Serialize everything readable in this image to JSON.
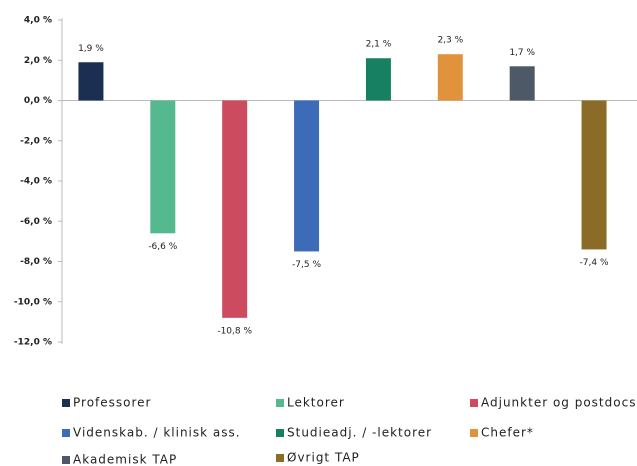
{
  "chart_data": {
    "type": "bar",
    "categories": [
      "Professorer",
      "Lektorer",
      "Adjunkter og postdocs",
      "Videnskab. / klinisk ass.",
      "Studieadj. / -lektorer",
      "Chefer*",
      "Akademisk TAP",
      "Øvrigt TAP"
    ],
    "values": [
      1.9,
      -6.6,
      -10.8,
      -7.5,
      2.1,
      2.3,
      1.7,
      -7.4
    ],
    "value_labels": [
      "1,9 %",
      "-6,6 %",
      "-10,8 %",
      "-7,5 %",
      "2,1 %",
      "2,3 %",
      "1,7 %",
      "-7,4 %"
    ],
    "colors": [
      "#1b2f52",
      "#55b98f",
      "#cc4b5f",
      "#3c6bb8",
      "#188062",
      "#e0933a",
      "#4d5966",
      "#8a6b27"
    ],
    "ylim": [
      -12,
      4
    ],
    "yticks": [
      {
        "value": 4,
        "label": "4,0 %"
      },
      {
        "value": 2,
        "label": "2,0 %"
      },
      {
        "value": 0,
        "label": "0,0 %"
      },
      {
        "value": -2,
        "label": "-2,0 %"
      },
      {
        "value": -4,
        "label": "-4,0 %"
      },
      {
        "value": -6,
        "label": "-6,0 %"
      },
      {
        "value": -8,
        "label": "-8,0 %"
      },
      {
        "value": -10,
        "label": "-10,0 %"
      },
      {
        "value": -12,
        "label": "-12,0 %"
      }
    ],
    "legend": "bottom"
  }
}
